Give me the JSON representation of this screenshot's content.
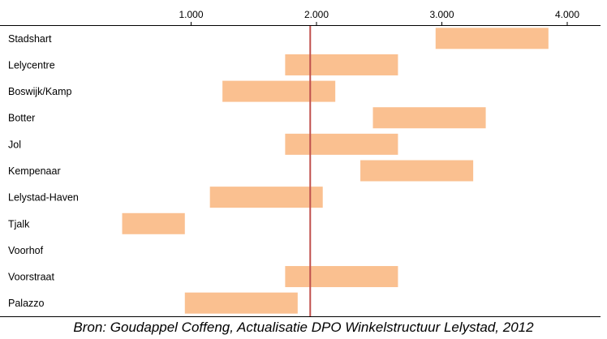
{
  "chart_data": {
    "type": "bar",
    "orientation": "horizontal",
    "subtype": "floating-range",
    "categories": [
      "Stadshart",
      "Lelycentre",
      "Boswijk/Kamp",
      "Botter",
      "Jol",
      "Kempenaar",
      "Lelystad-Haven",
      "Tjalk",
      "Voorhof",
      "Voorstraat",
      "Palazzo"
    ],
    "ranges": [
      [
        2950,
        3850
      ],
      [
        1750,
        2650
      ],
      [
        1250,
        2150
      ],
      [
        2450,
        3350
      ],
      [
        1750,
        2650
      ],
      [
        2350,
        3250
      ],
      [
        1150,
        2050
      ],
      [
        450,
        950
      ],
      null,
      [
        1750,
        2650
      ],
      [
        950,
        1850
      ]
    ],
    "reference_line": {
      "value": 1950,
      "color": "#C0504D"
    },
    "xlim": [
      0,
      4150
    ],
    "x_ticks": [
      1000,
      2000,
      3000,
      4000
    ],
    "x_tick_labels": [
      "1.000",
      "2.000",
      "3.000",
      "4.000"
    ],
    "x_axis_position": "top",
    "grid": false,
    "bar_color": "#FAC090",
    "title": "",
    "xlabel": "",
    "ylabel": ""
  },
  "source_note": "Bron: Goudappel Coffeng, Actualisatie DPO Winkelstructuur Lelystad, 2012"
}
